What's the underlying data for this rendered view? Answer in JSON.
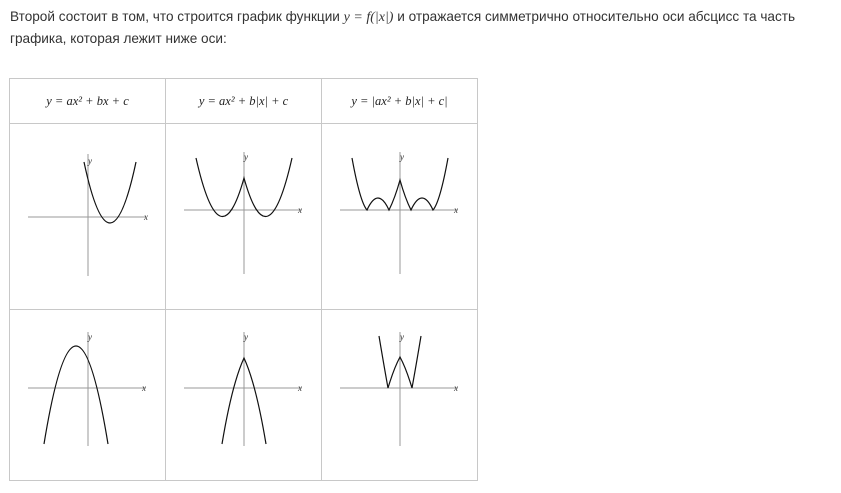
{
  "intro": {
    "part1": "Второй состоит в том, что строится график функции ",
    "formula": "y = f(|x|)",
    "part2": " и отражается симметрично относительно оси абсцисс та часть графика, которая лежит ниже оси:"
  },
  "table": {
    "headers": [
      "y = ax² + bx + c",
      "y = ax² + b|x| + c",
      "y = |ax² + b|x| + c|"
    ],
    "axis_labels": {
      "x": "x",
      "y": "y"
    }
  }
}
